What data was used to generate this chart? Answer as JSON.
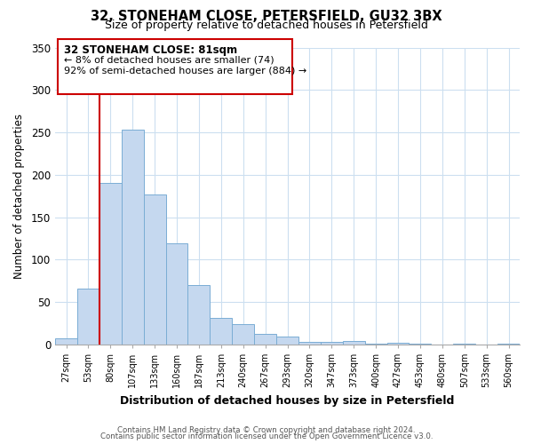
{
  "title": "32, STONEHAM CLOSE, PETERSFIELD, GU32 3BX",
  "subtitle": "Size of property relative to detached houses in Petersfield",
  "xlabel": "Distribution of detached houses by size in Petersfield",
  "ylabel": "Number of detached properties",
  "bar_color": "#c5d8ef",
  "bar_edge_color": "#7aadd4",
  "background_color": "#ffffff",
  "grid_color": "#ccdff0",
  "annotation_box_edge_color": "#cc0000",
  "property_line_color": "#cc0000",
  "bins": [
    "27sqm",
    "53sqm",
    "80sqm",
    "107sqm",
    "133sqm",
    "160sqm",
    "187sqm",
    "213sqm",
    "240sqm",
    "267sqm",
    "293sqm",
    "320sqm",
    "347sqm",
    "373sqm",
    "400sqm",
    "427sqm",
    "453sqm",
    "480sqm",
    "507sqm",
    "533sqm",
    "560sqm"
  ],
  "counts": [
    7,
    66,
    190,
    253,
    177,
    119,
    70,
    31,
    24,
    12,
    9,
    3,
    3,
    4,
    1,
    2,
    1,
    0,
    1,
    0,
    1
  ],
  "property_size_index": 2,
  "annotation_title": "32 STONEHAM CLOSE: 81sqm",
  "annotation_line1": "← 8% of detached houses are smaller (74)",
  "annotation_line2": "92% of semi-detached houses are larger (884) →",
  "footer1": "Contains HM Land Registry data © Crown copyright and database right 2024.",
  "footer2": "Contains public sector information licensed under the Open Government Licence v3.0.",
  "ylim": [
    0,
    350
  ],
  "yticks": [
    0,
    50,
    100,
    150,
    200,
    250,
    300,
    350
  ]
}
